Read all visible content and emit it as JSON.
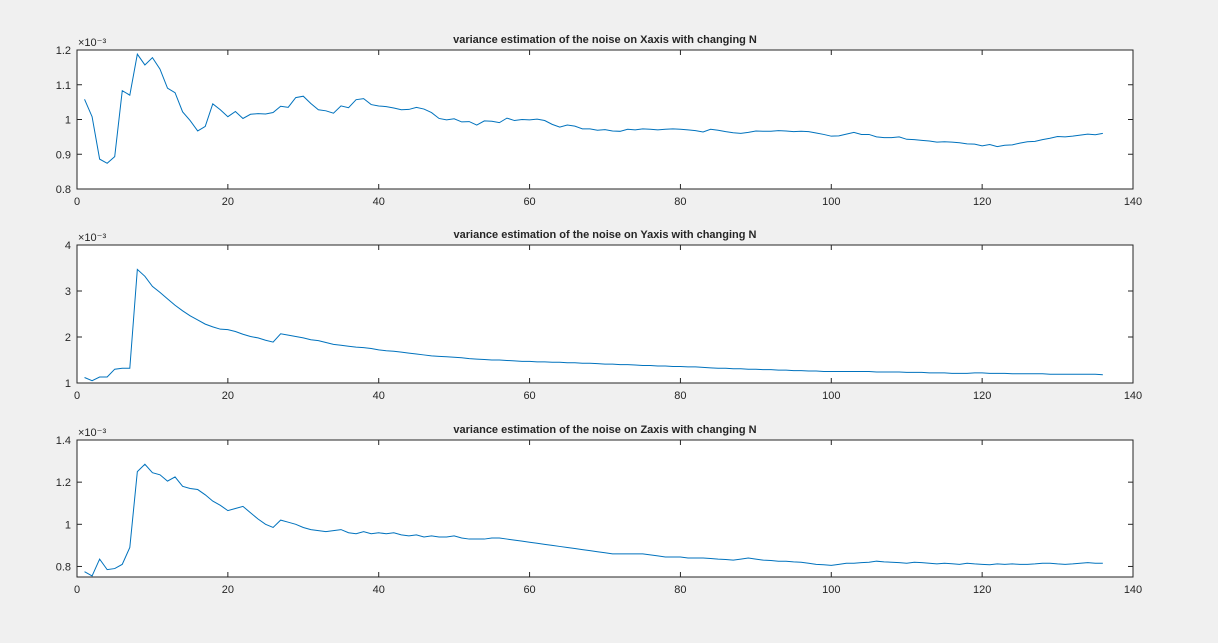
{
  "window": {
    "background": "#f0f0f0",
    "axes_background": "#ffffff",
    "axis_color": "#262626",
    "line_color": "#0072bd"
  },
  "chart_data": [
    {
      "type": "line",
      "title": "variance estimation of the noise on Xaxis with changing N",
      "xlabel": "",
      "ylabel": "",
      "exponent_label": "×10⁻³",
      "xlim": [
        0,
        140
      ],
      "ylim": [
        0.8,
        1.2
      ],
      "xticks": [
        0,
        20,
        40,
        60,
        80,
        100,
        120,
        140
      ],
      "xtick_labels": [
        "0",
        "20",
        "40",
        "60",
        "80",
        "100",
        "120",
        "140"
      ],
      "yticks": [
        0.8,
        0.9,
        1.0,
        1.1,
        1.2
      ],
      "ytick_labels": [
        "0.8",
        "0.9",
        "1",
        "1.1",
        "1.2"
      ],
      "grid": false,
      "series": [
        {
          "x": [
            1,
            2,
            3,
            4,
            5,
            6,
            7,
            8,
            9,
            10,
            11,
            12,
            13,
            14,
            15,
            16,
            17,
            18,
            19,
            20,
            21,
            22,
            23,
            24,
            25,
            26,
            27,
            28,
            29,
            30,
            31,
            32,
            33,
            34,
            35,
            36,
            37,
            38,
            39,
            40,
            41,
            42,
            43,
            44,
            45,
            46,
            47,
            48,
            49,
            50,
            51,
            52,
            53,
            54,
            55,
            56,
            57,
            58,
            59,
            60,
            61,
            62,
            63,
            64,
            65,
            66,
            67,
            68,
            69,
            70,
            71,
            72,
            73,
            74,
            75,
            76,
            77,
            78,
            79,
            80,
            81,
            82,
            83,
            84,
            85,
            86,
            87,
            88,
            89,
            90,
            91,
            92,
            93,
            94,
            95,
            96,
            97,
            98,
            99,
            100,
            101,
            102,
            103,
            104,
            105,
            106,
            107,
            108,
            109,
            110,
            111,
            112,
            113,
            114,
            115,
            116,
            117,
            118,
            119,
            120,
            121,
            122,
            123,
            124,
            125,
            126,
            127,
            128,
            129,
            130,
            131,
            132,
            133,
            134,
            135,
            136
          ],
          "values": [
            1.058,
            1.008,
            0.886,
            0.874,
            0.893,
            1.083,
            1.07,
            1.188,
            1.157,
            1.178,
            1.145,
            1.09,
            1.077,
            1.022,
            0.997,
            0.967,
            0.98,
            1.045,
            1.028,
            1.008,
            1.023,
            1.003,
            1.015,
            1.017,
            1.016,
            1.02,
            1.038,
            1.035,
            1.063,
            1.067,
            1.046,
            1.028,
            1.025,
            1.018,
            1.039,
            1.034,
            1.057,
            1.06,
            1.043,
            1.039,
            1.037,
            1.033,
            1.028,
            1.029,
            1.035,
            1.03,
            1.02,
            1.003,
            0.999,
            1.002,
            0.993,
            0.994,
            0.984,
            0.996,
            0.995,
            0.991,
            1.004,
            0.997,
            1.0,
            0.999,
            1.001,
            0.997,
            0.986,
            0.978,
            0.984,
            0.981,
            0.973,
            0.973,
            0.969,
            0.971,
            0.967,
            0.966,
            0.972,
            0.97,
            0.973,
            0.972,
            0.97,
            0.972,
            0.973,
            0.972,
            0.97,
            0.968,
            0.964,
            0.972,
            0.969,
            0.965,
            0.962,
            0.96,
            0.963,
            0.967,
            0.966,
            0.966,
            0.968,
            0.967,
            0.965,
            0.966,
            0.965,
            0.961,
            0.957,
            0.952,
            0.953,
            0.958,
            0.963,
            0.957,
            0.957,
            0.95,
            0.948,
            0.948,
            0.95,
            0.943,
            0.942,
            0.94,
            0.938,
            0.935,
            0.936,
            0.935,
            0.933,
            0.93,
            0.929,
            0.924,
            0.928,
            0.922,
            0.926,
            0.927,
            0.932,
            0.936,
            0.937,
            0.942,
            0.946,
            0.951,
            0.95,
            0.952,
            0.955,
            0.958,
            0.956,
            0.96
          ]
        }
      ]
    },
    {
      "type": "line",
      "title": "variance estimation of the noise on Yaxis with changing N",
      "xlabel": "",
      "ylabel": "",
      "exponent_label": "×10⁻³",
      "xlim": [
        0,
        140
      ],
      "ylim": [
        1,
        4
      ],
      "xticks": [
        0,
        20,
        40,
        60,
        80,
        100,
        120,
        140
      ],
      "xtick_labels": [
        "0",
        "20",
        "40",
        "60",
        "80",
        "100",
        "120",
        "140"
      ],
      "yticks": [
        1,
        2,
        3,
        4
      ],
      "ytick_labels": [
        "1",
        "2",
        "3",
        "4"
      ],
      "grid": false,
      "series": [
        {
          "x": [
            1,
            2,
            3,
            4,
            5,
            6,
            7,
            8,
            9,
            10,
            11,
            12,
            13,
            14,
            15,
            16,
            17,
            18,
            19,
            20,
            21,
            22,
            23,
            24,
            25,
            26,
            27,
            28,
            29,
            30,
            31,
            32,
            33,
            34,
            35,
            36,
            37,
            38,
            39,
            40,
            41,
            42,
            43,
            44,
            45,
            46,
            47,
            48,
            49,
            50,
            51,
            52,
            53,
            54,
            55,
            56,
            57,
            58,
            59,
            60,
            61,
            62,
            63,
            64,
            65,
            66,
            67,
            68,
            69,
            70,
            71,
            72,
            73,
            74,
            75,
            76,
            77,
            78,
            79,
            80,
            81,
            82,
            83,
            84,
            85,
            86,
            87,
            88,
            89,
            90,
            91,
            92,
            93,
            94,
            95,
            96,
            97,
            98,
            99,
            100,
            101,
            102,
            103,
            104,
            105,
            106,
            107,
            108,
            109,
            110,
            111,
            112,
            113,
            114,
            115,
            116,
            117,
            118,
            119,
            120,
            121,
            122,
            123,
            124,
            125,
            126,
            127,
            128,
            129,
            130,
            131,
            132,
            133,
            134,
            135,
            136
          ],
          "values": [
            1.12,
            1.05,
            1.13,
            1.13,
            1.3,
            1.32,
            1.32,
            3.47,
            3.32,
            3.1,
            2.97,
            2.83,
            2.69,
            2.57,
            2.46,
            2.37,
            2.28,
            2.22,
            2.17,
            2.16,
            2.12,
            2.06,
            2.01,
            1.98,
            1.93,
            1.89,
            2.07,
            2.04,
            2.01,
            1.98,
            1.94,
            1.92,
            1.88,
            1.84,
            1.82,
            1.8,
            1.78,
            1.77,
            1.75,
            1.72,
            1.7,
            1.69,
            1.67,
            1.65,
            1.63,
            1.61,
            1.59,
            1.58,
            1.57,
            1.56,
            1.55,
            1.53,
            1.52,
            1.51,
            1.5,
            1.5,
            1.49,
            1.48,
            1.47,
            1.47,
            1.46,
            1.46,
            1.45,
            1.45,
            1.44,
            1.44,
            1.43,
            1.43,
            1.42,
            1.41,
            1.41,
            1.4,
            1.4,
            1.39,
            1.38,
            1.38,
            1.37,
            1.37,
            1.36,
            1.36,
            1.35,
            1.35,
            1.34,
            1.33,
            1.32,
            1.32,
            1.31,
            1.31,
            1.3,
            1.3,
            1.29,
            1.29,
            1.28,
            1.28,
            1.27,
            1.27,
            1.26,
            1.26,
            1.25,
            1.25,
            1.25,
            1.25,
            1.25,
            1.25,
            1.25,
            1.24,
            1.24,
            1.24,
            1.24,
            1.23,
            1.23,
            1.23,
            1.22,
            1.22,
            1.22,
            1.21,
            1.21,
            1.21,
            1.22,
            1.22,
            1.21,
            1.21,
            1.21,
            1.2,
            1.2,
            1.2,
            1.2,
            1.2,
            1.19,
            1.19,
            1.19,
            1.19,
            1.19,
            1.19,
            1.19,
            1.18
          ]
        }
      ]
    },
    {
      "type": "line",
      "title": "variance estimation of the noise on Zaxis with changing N",
      "xlabel": "",
      "ylabel": "",
      "exponent_label": "×10⁻³",
      "xlim": [
        0,
        140
      ],
      "ylim": [
        0.75,
        1.4
      ],
      "xticks": [
        0,
        20,
        40,
        60,
        80,
        100,
        120,
        140
      ],
      "xtick_labels": [
        "0",
        "20",
        "40",
        "60",
        "80",
        "100",
        "120",
        "140"
      ],
      "yticks": [
        0.8,
        1.0,
        1.2,
        1.4
      ],
      "ytick_labels": [
        "0.8",
        "1",
        "1.2",
        "1.4"
      ],
      "grid": false,
      "series": [
        {
          "x": [
            1,
            2,
            3,
            4,
            5,
            6,
            7,
            8,
            9,
            10,
            11,
            12,
            13,
            14,
            15,
            16,
            17,
            18,
            19,
            20,
            21,
            22,
            23,
            24,
            25,
            26,
            27,
            28,
            29,
            30,
            31,
            32,
            33,
            34,
            35,
            36,
            37,
            38,
            39,
            40,
            41,
            42,
            43,
            44,
            45,
            46,
            47,
            48,
            49,
            50,
            51,
            52,
            53,
            54,
            55,
            56,
            57,
            58,
            59,
            60,
            61,
            62,
            63,
            64,
            65,
            66,
            67,
            68,
            69,
            70,
            71,
            72,
            73,
            74,
            75,
            76,
            77,
            78,
            79,
            80,
            81,
            82,
            83,
            84,
            85,
            86,
            87,
            88,
            89,
            90,
            91,
            92,
            93,
            94,
            95,
            96,
            97,
            98,
            99,
            100,
            101,
            102,
            103,
            104,
            105,
            106,
            107,
            108,
            109,
            110,
            111,
            112,
            113,
            114,
            115,
            116,
            117,
            118,
            119,
            120,
            121,
            122,
            123,
            124,
            125,
            126,
            127,
            128,
            129,
            130,
            131,
            132,
            133,
            134,
            135,
            136
          ],
          "values": [
            0.775,
            0.755,
            0.835,
            0.785,
            0.79,
            0.81,
            0.89,
            1.25,
            1.285,
            1.245,
            1.235,
            1.205,
            1.225,
            1.18,
            1.17,
            1.165,
            1.14,
            1.11,
            1.09,
            1.065,
            1.075,
            1.085,
            1.055,
            1.025,
            1.0,
            0.985,
            1.02,
            1.01,
            1.0,
            0.985,
            0.975,
            0.97,
            0.965,
            0.97,
            0.975,
            0.96,
            0.955,
            0.965,
            0.955,
            0.96,
            0.955,
            0.96,
            0.95,
            0.945,
            0.95,
            0.94,
            0.945,
            0.94,
            0.94,
            0.945,
            0.935,
            0.93,
            0.93,
            0.93,
            0.935,
            0.935,
            0.93,
            0.925,
            0.92,
            0.915,
            0.91,
            0.905,
            0.9,
            0.895,
            0.89,
            0.885,
            0.88,
            0.875,
            0.87,
            0.865,
            0.86,
            0.86,
            0.86,
            0.86,
            0.86,
            0.855,
            0.85,
            0.845,
            0.845,
            0.845,
            0.84,
            0.84,
            0.84,
            0.838,
            0.835,
            0.833,
            0.83,
            0.835,
            0.84,
            0.835,
            0.83,
            0.828,
            0.825,
            0.825,
            0.822,
            0.82,
            0.815,
            0.81,
            0.808,
            0.805,
            0.81,
            0.815,
            0.815,
            0.818,
            0.82,
            0.825,
            0.822,
            0.82,
            0.818,
            0.815,
            0.82,
            0.818,
            0.815,
            0.812,
            0.815,
            0.813,
            0.81,
            0.815,
            0.812,
            0.81,
            0.808,
            0.812,
            0.81,
            0.812,
            0.81,
            0.81,
            0.812,
            0.815,
            0.815,
            0.812,
            0.81,
            0.812,
            0.815,
            0.818,
            0.815,
            0.815
          ]
        }
      ]
    }
  ]
}
